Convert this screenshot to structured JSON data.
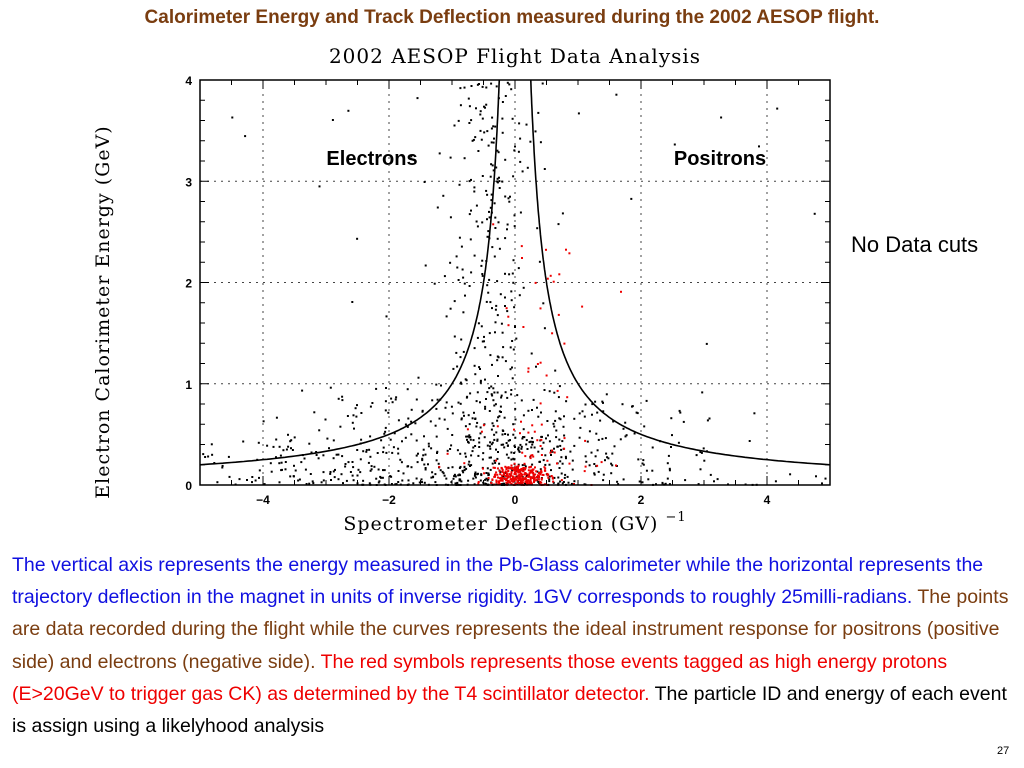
{
  "slide": {
    "title": "Calorimeter Energy and Track Deflection measured during the 2002 AESOP flight.",
    "side_note": "No Data cuts",
    "page_number": "27",
    "description": [
      {
        "text": "The vertical axis represents the energy measured in the Pb-Glass calorimeter while the horizontal represents the trajectory deflection in the magnet in units of inverse rigidity. 1GV corresponds to roughly 25milli-radians.",
        "color": "#1010e0"
      },
      {
        "text": " The points are data recorded during the flight while the curves represents the ideal instrument response for positrons (positive side) and electrons (negative side).",
        "color": "#7a3d10"
      },
      {
        "text": " The red symbols represents those events tagged as high energy protons (E>20GeV to trigger gas CK) as determined by the T4 scintillator detector.",
        "color": "#ee0000"
      },
      {
        "text": " The particle ID and energy of each event is assign using a likelyhood analysis",
        "color": "#000000"
      }
    ]
  },
  "chart_data": {
    "type": "scatter",
    "title": "2002 AESOP Flight Data Analysis",
    "xlabel": "Spectrometer Deflection (GV)",
    "xlabel_superscript": "−1",
    "ylabel": "Electron Calorimeter Energy (GeV)",
    "xlim": [
      -5,
      5
    ],
    "ylim": [
      0,
      4
    ],
    "x_ticks": [
      "−4",
      "−2",
      "0",
      "2",
      "4"
    ],
    "y_ticks": [
      "0",
      "1",
      "2",
      "3",
      "4"
    ],
    "grid": true,
    "annotations": {
      "left": "Electrons",
      "right": "Positrons"
    },
    "series_colors": {
      "events": "#000000",
      "proton_tagged": "#ee0000",
      "curves": "#000000"
    },
    "curves": [
      {
        "side": "electrons",
        "x": [
          -5.0,
          -4.5,
          -4.0,
          -3.5,
          -3.0,
          -2.5,
          -2.0,
          -1.5,
          -1.0,
          -0.8,
          -0.6,
          -0.5,
          -0.4,
          -0.3,
          -0.25
        ],
        "y": [
          0.2,
          0.22,
          0.25,
          0.286,
          0.333,
          0.4,
          0.5,
          0.667,
          1.0,
          1.25,
          1.667,
          2.0,
          2.5,
          3.333,
          4.0
        ]
      },
      {
        "side": "positrons",
        "x": [
          0.25,
          0.3,
          0.4,
          0.5,
          0.6,
          0.8,
          1.0,
          1.5,
          2.0,
          2.5,
          3.0,
          3.5,
          4.0,
          4.5,
          5.0
        ],
        "y": [
          4.0,
          3.333,
          2.5,
          2.0,
          1.667,
          1.25,
          1.0,
          0.667,
          0.5,
          0.4,
          0.333,
          0.286,
          0.25,
          0.22,
          0.2
        ]
      }
    ],
    "point_groups": {
      "black": [
        {
          "count": 260,
          "x_mu": -0.35,
          "x_sd": 0.35,
          "y_min": 0.3,
          "y_max": 4.0,
          "y_shape": 1.0
        },
        {
          "count": 320,
          "x_mu": -0.8,
          "x_sd": 1.3,
          "y_min": 0.0,
          "y_max": 1.0,
          "y_shape": 1.7
        },
        {
          "count": 120,
          "x_mu": -3.0,
          "x_sd": 1.1,
          "y_min": 0.0,
          "y_max": 0.45,
          "y_shape": 1.5
        },
        {
          "count": 150,
          "x_mu": 1.4,
          "x_sd": 1.6,
          "y_min": 0.0,
          "y_max": 0.8,
          "y_shape": 1.8
        },
        {
          "count": 60,
          "x_mu": 0.0,
          "x_sd": 2.6,
          "y_min": 0.0,
          "y_max": 3.9,
          "y_shape": 1.0
        },
        {
          "count": 120,
          "x_mu": -0.1,
          "x_sd": 0.5,
          "y_min": 0.0,
          "y_max": 0.5,
          "y_shape": 1.3
        }
      ],
      "red": [
        {
          "count": 260,
          "x_mu": 0.05,
          "x_sd": 0.22,
          "y_min": 0.0,
          "y_max": 0.18,
          "y_shape": 1.0
        },
        {
          "count": 70,
          "x_mu": 0.25,
          "x_sd": 0.55,
          "y_min": 0.0,
          "y_max": 0.6,
          "y_shape": 1.6
        },
        {
          "count": 30,
          "x_mu": 0.3,
          "x_sd": 0.35,
          "y_min": 0.5,
          "y_max": 2.6,
          "y_shape": 1.0
        }
      ]
    }
  }
}
